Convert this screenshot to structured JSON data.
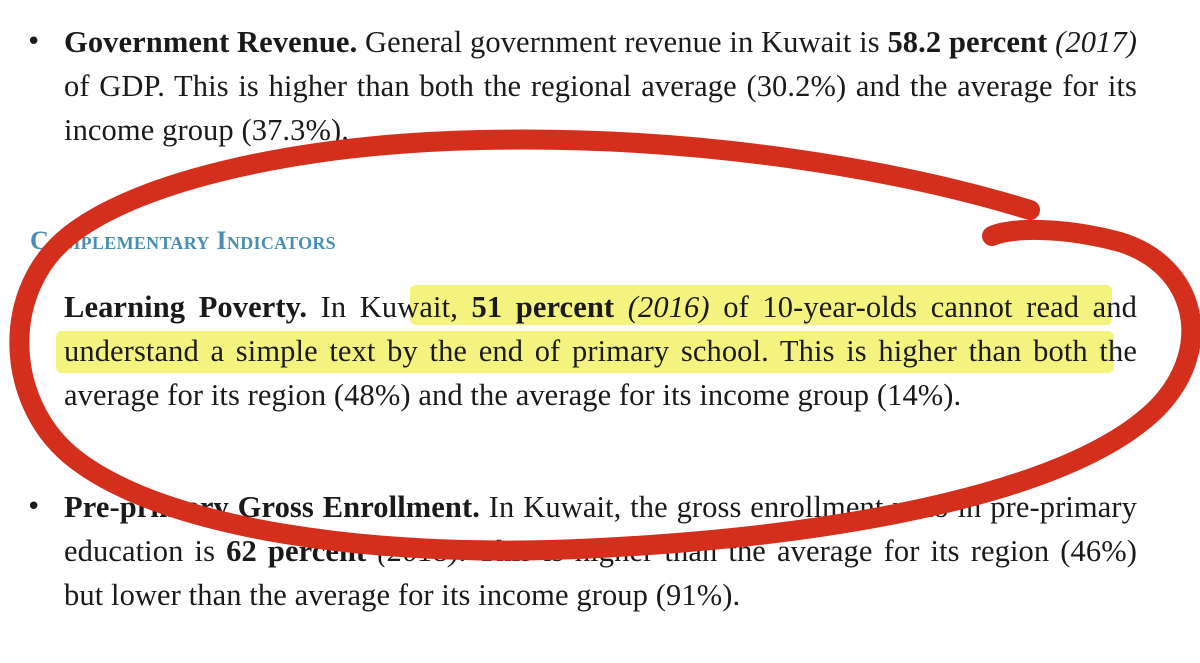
{
  "doc": {
    "gov_revenue": {
      "bullet": "•",
      "term": "Government Revenue.",
      "text_1": " General government revenue in Kuwait is ",
      "value": "58.2 percent",
      "year": "(2017)",
      "text_2": " of GDP. This is higher than both the regional average (30.2%) and the average for its income group (37.3%)."
    },
    "section_heading": "Complementary Indicators",
    "learning_poverty": {
      "term": "Learning Poverty.",
      "text_1": " In Kuwait, ",
      "value": "51 percent",
      "year": "(2016)",
      "text_2": " of 10-year-olds cannot read and understand a simple text by the end of primary school. This is higher than both the average for its region (48%) and the average for its income group (14%)."
    },
    "pre_primary": {
      "bullet": "•",
      "term": "Pre-primary Gross Enrollment.",
      "text_1": " In Kuwait, the gross enrollment ratio in pre-primary education is ",
      "value": "62 percent",
      "year": "(2018).",
      "text_2": " This is higher than the average for its region (46%) but lower than the average for its income group (91%)."
    }
  },
  "annotations": {
    "highlight_color": "#f3f16a",
    "ink_color": "#d42e1c"
  }
}
